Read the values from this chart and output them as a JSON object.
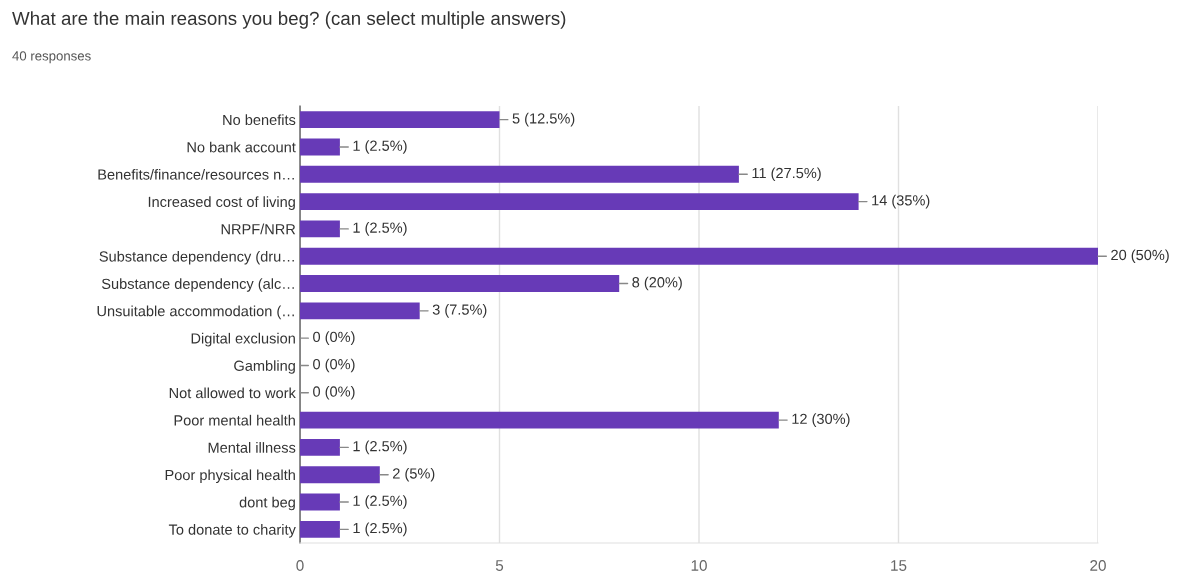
{
  "chart_data": {
    "type": "bar",
    "orientation": "horizontal",
    "title": "What are the main reasons you beg? (can select multiple answers)",
    "subtitle": "40 responses",
    "categories": [
      "No benefits",
      "No bank account",
      "Benefits/finance/resources n…",
      "Increased cost of living",
      "NRPF/NRR",
      "Substance dependency (dru…",
      "Substance dependency (alc…",
      "Unsuitable accommodation (…",
      "Digital exclusion",
      "Gambling",
      "Not allowed to work",
      "Poor mental health",
      "Mental illness",
      "Poor physical health",
      "dont beg",
      "To donate to charity"
    ],
    "values": [
      5,
      1,
      11,
      14,
      1,
      20,
      8,
      3,
      0,
      0,
      0,
      12,
      1,
      2,
      1,
      1
    ],
    "value_labels": [
      "5 (12.5%)",
      "1 (2.5%)",
      "11 (27.5%)",
      "14 (35%)",
      "1 (2.5%)",
      "20 (50%)",
      "8 (20%)",
      "3 (7.5%)",
      "0 (0%)",
      "0 (0%)",
      "0 (0%)",
      "12 (30%)",
      "1 (2.5%)",
      "2 (5%)",
      "1 (2.5%)",
      "1 (2.5%)"
    ],
    "color": "#673ab7",
    "xlim": [
      0,
      20
    ],
    "xticks": [
      0,
      5,
      10,
      15,
      20
    ],
    "grid": "x"
  }
}
